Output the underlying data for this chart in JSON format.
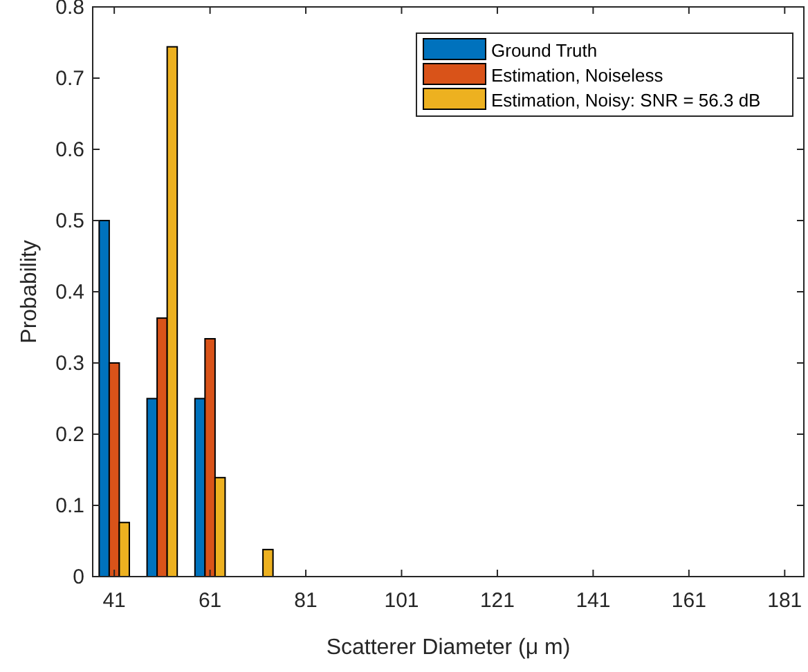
{
  "chart_data": {
    "type": "bar",
    "xlabel": "Scatterer Diameter (μ m)",
    "ylabel": "Probability",
    "x": [
      41,
      51,
      61,
      71
    ],
    "series": [
      {
        "name": "Ground Truth",
        "color": "#0072bd",
        "values": [
          0.5,
          0.25,
          0.25,
          0
        ]
      },
      {
        "name": "Estimation, Noiseless",
        "color": "#d95319",
        "values": [
          0.3,
          0.363,
          0.334,
          0
        ]
      },
      {
        "name": "Estimation, Noisy: SNR = 56.3 dB",
        "color": "#edb120",
        "values": [
          0.076,
          0.744,
          0.139,
          0.038
        ]
      }
    ],
    "xlim": [
      36.5,
      185
    ],
    "xticks": [
      41,
      61,
      81,
      101,
      121,
      141,
      161,
      181
    ],
    "ylim": [
      0,
      0.8
    ],
    "yticks": [
      0,
      0.1,
      0.2,
      0.3,
      0.4,
      0.5,
      0.6,
      0.7,
      0.8
    ],
    "grid": false,
    "legend": "top right"
  }
}
